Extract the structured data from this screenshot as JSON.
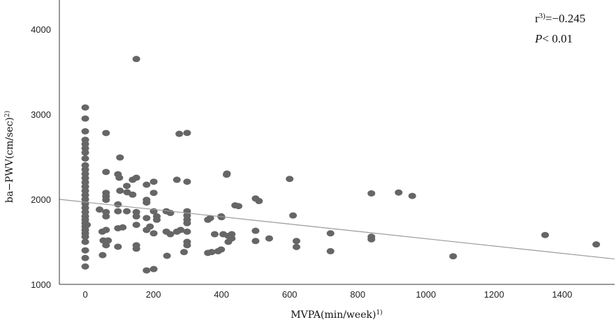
{
  "chart_data": {
    "type": "scatter",
    "title": "",
    "xlabel": "MVPA(min/week)",
    "xlabel_sup": "1)",
    "ylabel": "ba−PWV(cm/sec)",
    "ylabel_sup": "2)",
    "xlim": [
      -76,
      1554
    ],
    "ylim": [
      1000,
      4344
    ],
    "xticks": [
      0,
      200,
      400,
      600,
      800,
      1000,
      1200,
      1400
    ],
    "xtick_labels": [
      "0",
      "200",
      "400",
      "600",
      "800",
      "1000",
      "1200",
      "1400"
    ],
    "yticks": [
      1000,
      2000,
      3000,
      4000
    ],
    "ytick_labels": [
      "1000",
      "2000",
      "3000",
      "4000"
    ],
    "grid": false,
    "point_color": "#666666",
    "line_color": "#9a9a9a",
    "regression": {
      "intercept": 1967,
      "slope": -0.43
    },
    "annotations": {
      "r_label": "r",
      "r_sup": "3)",
      "r_value": "=−0.245",
      "p_label": "P",
      "p_value": "< 0.01"
    },
    "points": [
      [
        0,
        3080
      ],
      [
        0,
        2950
      ],
      [
        0,
        2800
      ],
      [
        0,
        2700
      ],
      [
        0,
        2650
      ],
      [
        0,
        2600
      ],
      [
        0,
        2550
      ],
      [
        0,
        2480
      ],
      [
        0,
        2400
      ],
      [
        0,
        2350
      ],
      [
        0,
        2300
      ],
      [
        0,
        2250
      ],
      [
        0,
        2200
      ],
      [
        0,
        2150
      ],
      [
        0,
        2100
      ],
      [
        0,
        2050
      ],
      [
        0,
        2000
      ],
      [
        0,
        1950
      ],
      [
        0,
        1900
      ],
      [
        0,
        1850
      ],
      [
        0,
        1800
      ],
      [
        0,
        1760
      ],
      [
        0,
        1720
      ],
      [
        0,
        1680
      ],
      [
        0,
        1640
      ],
      [
        0,
        1600
      ],
      [
        0,
        1560
      ],
      [
        0,
        1500
      ],
      [
        0,
        1400
      ],
      [
        0,
        1310
      ],
      [
        0,
        1210
      ],
      [
        150,
        3650
      ],
      [
        61,
        2780
      ],
      [
        276,
        2770
      ],
      [
        299,
        2781
      ],
      [
        102,
        2492
      ],
      [
        61,
        2322
      ],
      [
        96,
        2295
      ],
      [
        100,
        2254
      ],
      [
        122,
        2158
      ],
      [
        150,
        2254
      ],
      [
        139,
        2230
      ],
      [
        180,
        2172
      ],
      [
        201,
        2207
      ],
      [
        269,
        2230
      ],
      [
        299,
        2207
      ],
      [
        416,
        2303
      ],
      [
        61,
        2076
      ],
      [
        61,
        2035
      ],
      [
        61,
        1994
      ],
      [
        102,
        2101
      ],
      [
        123,
        2083
      ],
      [
        139,
        2055
      ],
      [
        201,
        2076
      ],
      [
        180,
        1994
      ],
      [
        180,
        1962
      ],
      [
        96,
        1940
      ],
      [
        440,
        1929
      ],
      [
        42,
        1880
      ],
      [
        61,
        1850
      ],
      [
        61,
        1800
      ],
      [
        96,
        1860
      ],
      [
        122,
        1860
      ],
      [
        150,
        1850
      ],
      [
        150,
        1800
      ],
      [
        180,
        1780
      ],
      [
        201,
        1860
      ],
      [
        210,
        1800
      ],
      [
        210,
        1760
      ],
      [
        238,
        1860
      ],
      [
        250,
        1840
      ],
      [
        299,
        1860
      ],
      [
        299,
        1810
      ],
      [
        299,
        1760
      ],
      [
        299,
        1720
      ],
      [
        367,
        1780
      ],
      [
        399,
        1800
      ],
      [
        5,
        1700
      ],
      [
        50,
        1620
      ],
      [
        61,
        1640
      ],
      [
        96,
        1660
      ],
      [
        110,
        1670
      ],
      [
        150,
        1700
      ],
      [
        180,
        1640
      ],
      [
        190,
        1680
      ],
      [
        201,
        1600
      ],
      [
        238,
        1620
      ],
      [
        250,
        1590
      ],
      [
        269,
        1620
      ],
      [
        280,
        1640
      ],
      [
        299,
        1620
      ],
      [
        405,
        1590
      ],
      [
        430,
        1590
      ],
      [
        430,
        1540
      ],
      [
        53,
        1516
      ],
      [
        67,
        1516
      ],
      [
        61,
        1500
      ],
      [
        96,
        1443
      ],
      [
        61,
        1460
      ],
      [
        150,
        1460
      ],
      [
        150,
        1420
      ],
      [
        299,
        1500
      ],
      [
        299,
        1460
      ],
      [
        371,
        1380
      ],
      [
        399,
        1410
      ],
      [
        51,
        1344
      ],
      [
        240,
        1336
      ],
      [
        180,
        1164
      ],
      [
        201,
        1180
      ],
      [
        415,
        2290
      ],
      [
        450,
        1920
      ],
      [
        500,
        2010
      ],
      [
        510,
        1980
      ],
      [
        360,
        1760
      ],
      [
        400,
        1790
      ],
      [
        420,
        1570
      ],
      [
        420,
        1500
      ],
      [
        380,
        1590
      ],
      [
        360,
        1370
      ],
      [
        390,
        1390
      ],
      [
        290,
        1380
      ],
      [
        500,
        1630
      ],
      [
        500,
        1510
      ],
      [
        540,
        1540
      ],
      [
        600,
        2240
      ],
      [
        610,
        1810
      ],
      [
        620,
        1510
      ],
      [
        620,
        1440
      ],
      [
        720,
        1600
      ],
      [
        720,
        1390
      ],
      [
        840,
        2070
      ],
      [
        840,
        1560
      ],
      [
        840,
        1530
      ],
      [
        920,
        2080
      ],
      [
        960,
        2040
      ],
      [
        1080,
        1330
      ],
      [
        1350,
        1580
      ],
      [
        1500,
        1470
      ]
    ]
  }
}
